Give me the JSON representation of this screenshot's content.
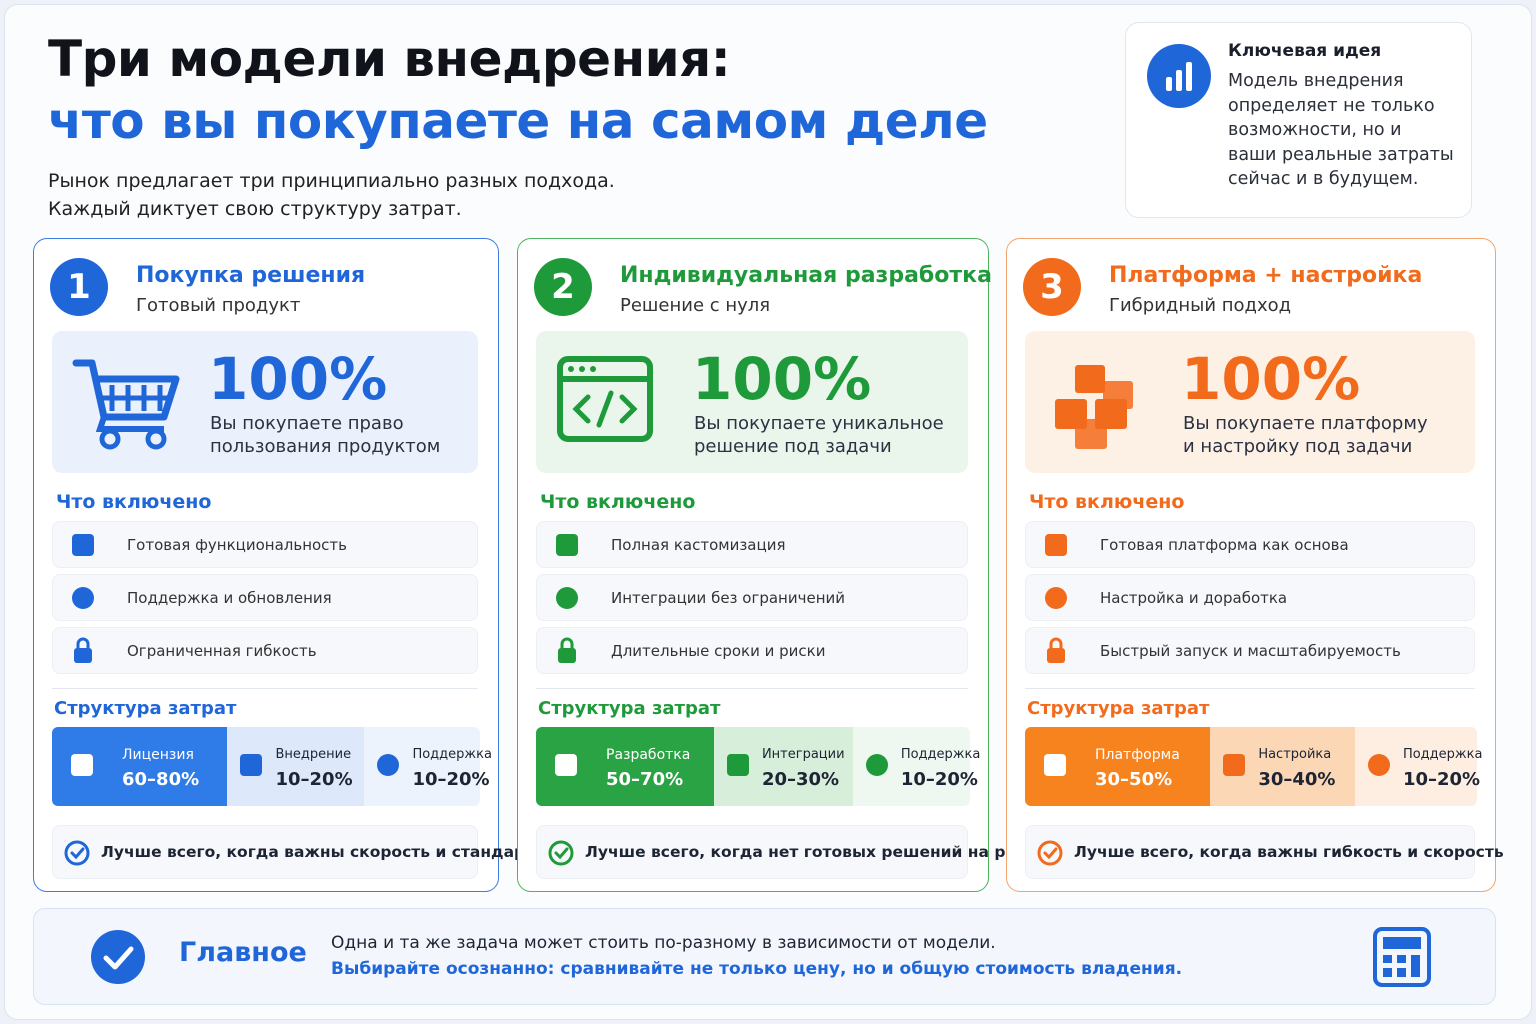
{
  "header": {
    "title_line1": "Три модели внедрения:",
    "title_line2": "что вы покупаете на самом деле",
    "subtitle_line1": "Рынок предлагает три принципиально разных подхода.",
    "subtitle_line2": "Каждый диктует свою структуру затрат."
  },
  "key_idea": {
    "title": "Ключевая идея",
    "lines": [
      "Модель внедрения",
      "определяет не только",
      "возможности, но и",
      "ваши реальные затраты",
      "сейчас и в будущем."
    ]
  },
  "models": [
    {
      "number": "1",
      "title": "Покупка решения",
      "subtitle": "Готовый продукт",
      "share": "100%",
      "share_text": [
        "Вы покупаете право",
        "пользования продуктом"
      ],
      "included_title": "Что включено",
      "included": [
        "Готовая функциональность",
        "Поддержка и обновления",
        "Ограниченная гибкость"
      ],
      "cost_title": "Структура затрат",
      "costs": [
        {
          "label": "Лицензия",
          "value": "60–80%"
        },
        {
          "label": "Внедрение",
          "value": "10–20%"
        },
        {
          "label": "Поддержка",
          "value": "10–20%"
        }
      ],
      "best_for": "Лучше всего, когда важны скорость и стандарты"
    },
    {
      "number": "2",
      "title": "Индивидуальная разработка",
      "subtitle": "Решение с нуля",
      "share": "100%",
      "share_text": [
        "Вы покупаете уникальное",
        "решение под задачи"
      ],
      "included_title": "Что включено",
      "included": [
        "Полная кастомизация",
        "Интеграции без ограничений",
        "Длительные сроки и риски"
      ],
      "cost_title": "Структура затрат",
      "costs": [
        {
          "label": "Разработка",
          "value": "50–70%"
        },
        {
          "label": "Интеграции",
          "value": "20–30%"
        },
        {
          "label": "Поддержка",
          "value": "10–20%"
        }
      ],
      "best_for": "Лучше всего, когда нет готовых решений на рынке"
    },
    {
      "number": "3",
      "title": "Платформа + настройка",
      "subtitle": "Гибридный подход",
      "share": "100%",
      "share_text": [
        "Вы покупаете платформу",
        "и настройку под задачи"
      ],
      "included_title": "Что включено",
      "included": [
        "Готовая платформа как основа",
        "Настройка и доработка",
        "Быстрый запуск и масштабируемость"
      ],
      "cost_title": "Структура затрат",
      "costs": [
        {
          "label": "Платформа",
          "value": "30–50%"
        },
        {
          "label": "Настройка",
          "value": "30–40%"
        },
        {
          "label": "Поддержка",
          "value": "10–20%"
        }
      ],
      "best_for": "Лучше всего, когда важны гибкость и скорость"
    }
  ],
  "footer": {
    "title": "Главное",
    "line1": "Одна и та же задача может стоить по-разному в зависимости от модели.",
    "line2": "Выбирайте осознанно: сравнивайте не только цену, но и общую стоимость владения."
  }
}
